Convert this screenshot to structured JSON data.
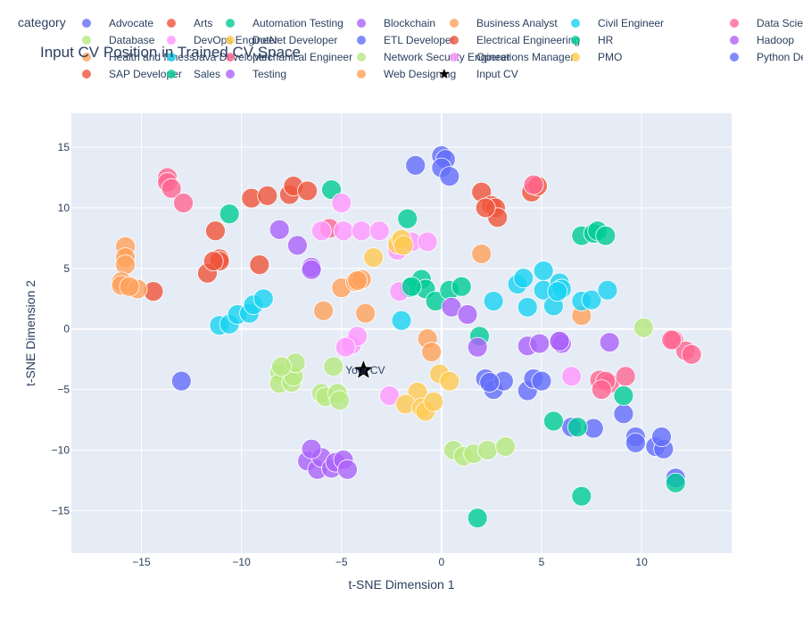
{
  "chart_data": {
    "type": "scatter",
    "title": "Input CV Position in Trained CV Space",
    "xlabel": "t-SNE Dimension 1",
    "ylabel": "t-SNE Dimension 2",
    "xlim": [
      -18.5,
      14.5
    ],
    "ylim": [
      -18.5,
      17.8
    ],
    "xticks": [
      -15,
      -10,
      -5,
      0,
      5,
      10
    ],
    "yticks": [
      -15,
      -10,
      -5,
      0,
      5,
      10,
      15
    ],
    "xtick_labels": [
      "−15",
      "−10",
      "−5",
      "0",
      "5",
      "10"
    ],
    "ytick_labels": [
      "−15",
      "−10",
      "−5",
      "0",
      "5",
      "10",
      "15"
    ],
    "grid": true,
    "legend_title": "category",
    "legend_placement": "top",
    "plot_bg": "#E5ECF6",
    "star_annotation": "Your CV",
    "series": [
      {
        "name": "Advocate",
        "color": "#636EFA",
        "points": [
          [
            -1.3,
            13.5
          ],
          [
            0,
            14.3
          ],
          [
            0.2,
            14
          ],
          [
            0,
            13.3
          ],
          [
            0.4,
            12.6
          ],
          [
            -13,
            -4.3
          ]
        ]
      },
      {
        "name": "Arts",
        "color": "#EF553B",
        "points": [
          [
            -9.5,
            10.8
          ],
          [
            -8.7,
            11
          ],
          [
            -7.6,
            11.1
          ],
          [
            -7.4,
            11.8
          ],
          [
            -6.7,
            11.4
          ],
          [
            -11.3,
            8.1
          ],
          [
            -11.1,
            5.8
          ],
          [
            -11.1,
            5.6
          ],
          [
            -11.7,
            4.6
          ],
          [
            -9.1,
            5.3
          ],
          [
            -14.4,
            3.1
          ],
          [
            2,
            11.3
          ],
          [
            2.5,
            10.2
          ],
          [
            2.7,
            10
          ],
          [
            2.8,
            9.2
          ],
          [
            4.5,
            11.3
          ],
          [
            4.8,
            11.8
          ]
        ]
      },
      {
        "name": "Automation Testing",
        "color": "#00CC96",
        "points": [
          [
            -5.5,
            11.5
          ],
          [
            -10.6,
            9.5
          ],
          [
            -1.7,
            9.1
          ],
          [
            -1,
            4.1
          ],
          [
            -1.6,
            3.4
          ],
          [
            -0.8,
            3.3
          ],
          [
            -0.3,
            2.3
          ],
          [
            0.4,
            3.2
          ],
          [
            1.0,
            3.5
          ],
          [
            1.9,
            -0.6
          ],
          [
            7.0,
            7.7
          ],
          [
            7.6,
            7.9
          ],
          [
            7.8,
            8.1
          ],
          [
            8.2,
            7.7
          ]
        ]
      },
      {
        "name": "Blockchain",
        "color": "#AB63FA",
        "points": [
          [
            -8.1,
            8.2
          ],
          [
            -7.2,
            6.9
          ],
          [
            -6.5,
            5.1
          ],
          [
            -6.5,
            4.9
          ],
          [
            0.5,
            1.8
          ],
          [
            1.3,
            1.2
          ],
          [
            1.8,
            -1.5
          ],
          [
            4.3,
            -1.4
          ],
          [
            4.9,
            -1.2
          ],
          [
            5.9,
            -1.0
          ],
          [
            6.0,
            -1.2
          ],
          [
            8.4,
            -1.1
          ]
        ]
      },
      {
        "name": "Business Analyst",
        "color": "#FFA15A",
        "points": [
          [
            -15.8,
            6.8
          ],
          [
            -15.8,
            5.9
          ],
          [
            -15.8,
            5.3
          ],
          [
            -16,
            3.9
          ],
          [
            -16,
            3.6
          ],
          [
            -15.2,
            3.3
          ],
          [
            -5.9,
            1.5
          ],
          [
            -5.0,
            3.4
          ],
          [
            -4.3,
            3.9
          ],
          [
            -4.0,
            4.1
          ],
          [
            -3.8,
            1.3
          ],
          [
            -0.7,
            -0.8
          ],
          [
            -0.5,
            -1.9
          ],
          [
            2.0,
            6.2
          ],
          [
            7.0,
            1.1
          ]
        ]
      },
      {
        "name": "Civil Engineer",
        "color": "#19D3F3",
        "points": [
          [
            -11.1,
            0.3
          ],
          [
            -10.6,
            0.4
          ],
          [
            -10.2,
            1.2
          ],
          [
            -9.6,
            1.3
          ],
          [
            -9.4,
            2
          ],
          [
            -8.9,
            2.5
          ],
          [
            -2.0,
            0.7
          ],
          [
            2.6,
            2.3
          ],
          [
            3.8,
            3.7
          ],
          [
            4.1,
            4.2
          ],
          [
            4.3,
            1.8
          ],
          [
            5.1,
            4.8
          ],
          [
            5.1,
            3.2
          ],
          [
            5.6,
            1.9
          ],
          [
            5.9,
            3.8
          ],
          [
            6.0,
            3.3
          ],
          [
            7.0,
            2.3
          ],
          [
            7.5,
            2.4
          ],
          [
            8.3,
            3.2
          ]
        ]
      },
      {
        "name": "Data Science",
        "color": "#FF6692",
        "points": [
          [
            -13.7,
            12.5
          ],
          [
            -13.7,
            12.1
          ],
          [
            -13.5,
            11.6
          ],
          [
            -12.9,
            10.4
          ],
          [
            -5.6,
            8.3
          ],
          [
            4.6,
            11.9
          ],
          [
            7.9,
            -4.2
          ],
          [
            8.4,
            -4.5
          ],
          [
            8.2,
            -4.3
          ],
          [
            9.2,
            -3.9
          ],
          [
            11.6,
            -0.9
          ],
          [
            12.2,
            -1.8
          ],
          [
            12.5,
            -2.1
          ],
          [
            8.0,
            -5.0
          ]
        ]
      },
      {
        "name": "Database",
        "color": "#B6E880",
        "points": [
          [
            -8.1,
            -3.6
          ],
          [
            -8.1,
            -4.5
          ],
          [
            -7.5,
            -4.4
          ],
          [
            -7.4,
            -3.9
          ],
          [
            -7.3,
            -2.8
          ],
          [
            -5.4,
            -3.1
          ],
          [
            -6.0,
            -5.3
          ],
          [
            -5.8,
            -5.6
          ],
          [
            -5.2,
            -5.3
          ],
          [
            -5.1,
            -5.9
          ],
          [
            0.6,
            -10.0
          ],
          [
            1.1,
            -10.5
          ],
          [
            1.6,
            -10.3
          ],
          [
            2.3,
            -10.0
          ],
          [
            3.2,
            -9.7
          ],
          [
            10.1,
            0.1
          ]
        ]
      },
      {
        "name": "DevOps Engineer",
        "color": "#FF97FF",
        "points": [
          [
            -5.0,
            10.4
          ],
          [
            -6.0,
            8.1
          ],
          [
            -4.9,
            8.1
          ],
          [
            -4.0,
            8.1
          ],
          [
            -3.1,
            8.1
          ],
          [
            -2.2,
            6.5
          ],
          [
            -1.5,
            7.2
          ],
          [
            -0.7,
            7.2
          ],
          [
            -2.1,
            3.1
          ],
          [
            -4.5,
            -1.3
          ],
          [
            -4.2,
            -0.6
          ],
          [
            -2.6,
            -5.5
          ],
          [
            6.5,
            -3.9
          ]
        ]
      },
      {
        "name": "DotNet Developer",
        "color": "#FECB52",
        "points": [
          [
            -3.4,
            5.9
          ],
          [
            -2.2,
            7.0
          ],
          [
            -2.0,
            7.4
          ],
          [
            -1.2,
            -5.2
          ],
          [
            -1.8,
            -6.2
          ],
          [
            -1.0,
            -6.5
          ],
          [
            -0.8,
            -6.8
          ],
          [
            -0.4,
            -6.0
          ],
          [
            -0.1,
            -3.7
          ],
          [
            0.4,
            -4.3
          ]
        ]
      },
      {
        "name": "ETL Developer",
        "color": "#636EFA",
        "points": [
          [
            2.2,
            -4.1
          ],
          [
            2.6,
            -5.0
          ],
          [
            3.1,
            -4.3
          ],
          [
            4.3,
            -5.1
          ],
          [
            4.6,
            -4.1
          ],
          [
            5.0,
            -4.3
          ],
          [
            6.5,
            -8.1
          ],
          [
            7.6,
            -8.2
          ],
          [
            9.1,
            -7.0
          ],
          [
            9.7,
            -8.9
          ],
          [
            9.7,
            -9.4
          ],
          [
            10.7,
            -9.7
          ],
          [
            11.1,
            -9.9
          ],
          [
            11.0,
            -8.9
          ],
          [
            11.7,
            -12.3
          ]
        ]
      },
      {
        "name": "Electrical Engineering",
        "color": "#EF553B",
        "points": [
          [
            -11.4,
            5.6
          ]
        ]
      },
      {
        "name": "HR",
        "color": "#00CC96",
        "points": [
          [
            5.6,
            -7.6
          ],
          [
            6.8,
            -8.1
          ],
          [
            7.0,
            -13.8
          ],
          [
            1.8,
            -15.6
          ],
          [
            9.1,
            -5.5
          ],
          [
            11.7,
            -12.7
          ]
        ]
      },
      {
        "name": "Hadoop",
        "color": "#AB63FA",
        "points": [
          [
            -6.7,
            -10.9
          ],
          [
            -6.2,
            -11.6
          ],
          [
            -6.0,
            -10.6
          ],
          [
            -6.5,
            -9.9
          ],
          [
            -5.5,
            -11.5
          ],
          [
            -5.3,
            -11.0
          ],
          [
            -4.9,
            -10.8
          ],
          [
            -4.7,
            -11.6
          ]
        ]
      },
      {
        "name": "Health and fitness",
        "color": "#FFA15A",
        "points": [
          [
            -4.2,
            4.0
          ]
        ]
      },
      {
        "name": "Java Developer",
        "color": "#19D3F3",
        "points": [
          [
            5.8,
            3.1
          ]
        ]
      },
      {
        "name": "Mechanical Engineer",
        "color": "#FF6692",
        "points": [
          [
            11.5,
            -0.9
          ]
        ]
      },
      {
        "name": "Network Security Engineer",
        "color": "#B6E880",
        "points": [
          [
            -8.0,
            -3.1
          ]
        ]
      },
      {
        "name": "Operations Manager",
        "color": "#FF97FF",
        "points": [
          [
            -4.8,
            -1.5
          ]
        ]
      },
      {
        "name": "PMO",
        "color": "#FECB52",
        "points": [
          [
            -1.9,
            6.9
          ]
        ]
      },
      {
        "name": "Python Developer",
        "color": "#636EFA",
        "points": [
          [
            2.4,
            -4.4
          ]
        ]
      },
      {
        "name": "SAP Developer",
        "color": "#EF553B",
        "points": [
          [
            2.2,
            10.0
          ]
        ]
      },
      {
        "name": "Sales",
        "color": "#00CC96",
        "points": [
          [
            -1.5,
            3.5
          ]
        ]
      },
      {
        "name": "Testing",
        "color": "#AB63FA",
        "points": [
          [
            5.9,
            -1.0
          ]
        ]
      },
      {
        "name": "Web Designing",
        "color": "#FFA15A",
        "points": [
          [
            -15.6,
            3.5
          ]
        ]
      },
      {
        "name": "Input CV",
        "color": "#000000",
        "symbol": "star",
        "points": [
          [
            -3.9,
            -3.4
          ]
        ]
      }
    ]
  }
}
